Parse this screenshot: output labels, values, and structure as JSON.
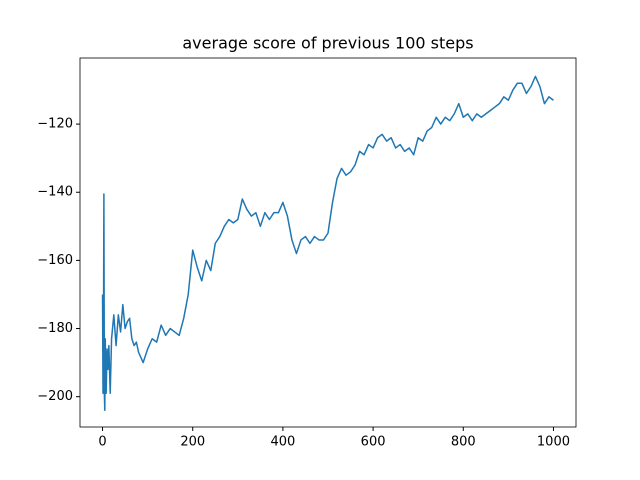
{
  "chart_data": {
    "type": "line",
    "title": "average score of previous 100 steps",
    "x": [
      0,
      1,
      2,
      3,
      4,
      5,
      6,
      8,
      10,
      12,
      14,
      17,
      20,
      25,
      30,
      35,
      40,
      45,
      50,
      55,
      60,
      65,
      70,
      75,
      80,
      90,
      100,
      110,
      120,
      130,
      140,
      150,
      160,
      170,
      180,
      190,
      200,
      210,
      220,
      230,
      240,
      250,
      260,
      270,
      280,
      290,
      300,
      310,
      320,
      330,
      340,
      350,
      360,
      370,
      380,
      390,
      400,
      410,
      420,
      430,
      440,
      450,
      460,
      470,
      480,
      490,
      500,
      510,
      520,
      530,
      540,
      550,
      560,
      570,
      580,
      590,
      600,
      610,
      620,
      630,
      640,
      650,
      660,
      670,
      680,
      690,
      700,
      710,
      720,
      730,
      740,
      750,
      760,
      770,
      780,
      790,
      800,
      810,
      820,
      830,
      840,
      850,
      860,
      870,
      880,
      890,
      900,
      910,
      920,
      930,
      940,
      950,
      960,
      970,
      980,
      990,
      1000
    ],
    "series": [
      {
        "color": "#1f77b4",
        "values": [
          -170,
          -199,
          -185,
          -140.5,
          -199,
          -204,
          -183,
          -199,
          -186,
          -192,
          -185,
          -199,
          -183,
          -176,
          -185,
          -176,
          -181,
          -173,
          -180,
          -178,
          -177,
          -183,
          -185,
          -184,
          -187,
          -190,
          -186,
          -183,
          -184,
          -179,
          -182,
          -180,
          -181,
          -182,
          -177,
          -170,
          -157,
          -162,
          -166,
          -160,
          -163,
          -155,
          -153,
          -150,
          -148,
          -149,
          -148,
          -142,
          -145,
          -147,
          -146,
          -150,
          -146,
          -148,
          -146,
          -146,
          -143,
          -147,
          -154,
          -158,
          -154,
          -153,
          -155,
          -153,
          -154,
          -154,
          -152,
          -143,
          -136,
          -133,
          -135,
          -134,
          -132,
          -128,
          -129,
          -126,
          -127,
          -124,
          -123,
          -125,
          -124,
          -127,
          -126,
          -128,
          -127,
          -129,
          -124,
          -125,
          -122,
          -121,
          -118,
          -120,
          -118,
          -119,
          -117,
          -114,
          -118,
          -117,
          -119,
          -117,
          -118,
          -117,
          -116,
          -115,
          -114,
          -112,
          -113,
          -110,
          -108,
          -108,
          -111,
          -109,
          -106,
          -109,
          -114,
          -112,
          -113
        ]
      }
    ],
    "xlim": [
      -50,
      1050
    ],
    "xticks": [
      0,
      200,
      400,
      600,
      800,
      1000
    ],
    "ylim": [
      -208.9,
      -100.6
    ],
    "yticks": [
      {
        "value": -200,
        "label": "−200"
      },
      {
        "value": -180,
        "label": "−180"
      },
      {
        "value": -160,
        "label": "−160"
      },
      {
        "value": -140,
        "label": "−140"
      },
      {
        "value": -120,
        "label": "−120"
      }
    ]
  }
}
